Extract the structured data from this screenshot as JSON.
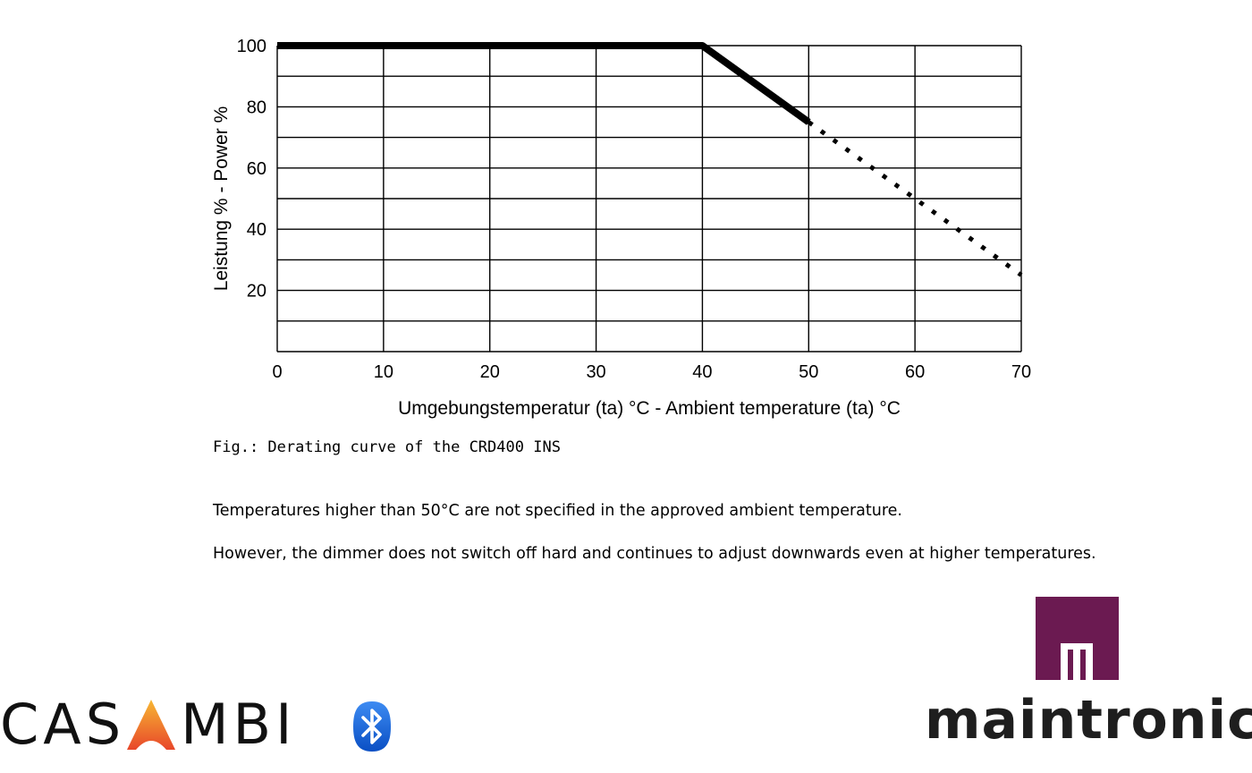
{
  "chart_data": {
    "type": "line",
    "xlabel": "Umgebungstemperatur (ta) °C - Ambient temperature (ta) °C",
    "ylabel": "Leistung % - Power %",
    "xlim": [
      0,
      70
    ],
    "ylim": [
      0,
      100
    ],
    "x_ticks": [
      0,
      10,
      20,
      30,
      40,
      50,
      60,
      70
    ],
    "y_ticks": [
      20,
      40,
      60,
      80,
      100
    ],
    "grid": true,
    "series": [
      {
        "style": "solid",
        "x": [
          0,
          40,
          50
        ],
        "y": [
          100,
          100,
          75
        ]
      },
      {
        "style": "dotted",
        "x": [
          50,
          70
        ],
        "y": [
          75,
          25
        ]
      }
    ]
  },
  "caption": "Fig.: Derating curve of the CRD400 INS",
  "paragraphs": [
    "Temperatures higher than 50°C are not specified in the approved ambient temperature.",
    "However, the dimmer does not switch off hard and continues to adjust downwards even at higher temperatures."
  ],
  "logos": {
    "casambi": {
      "text_before": "CAS",
      "text_after": "MBI",
      "accent_colors": [
        "#f7b733",
        "#e8472a"
      ],
      "icon": "bluetooth-icon"
    },
    "maintronic": {
      "text": "maintronic",
      "color": "#6b1a51"
    }
  }
}
